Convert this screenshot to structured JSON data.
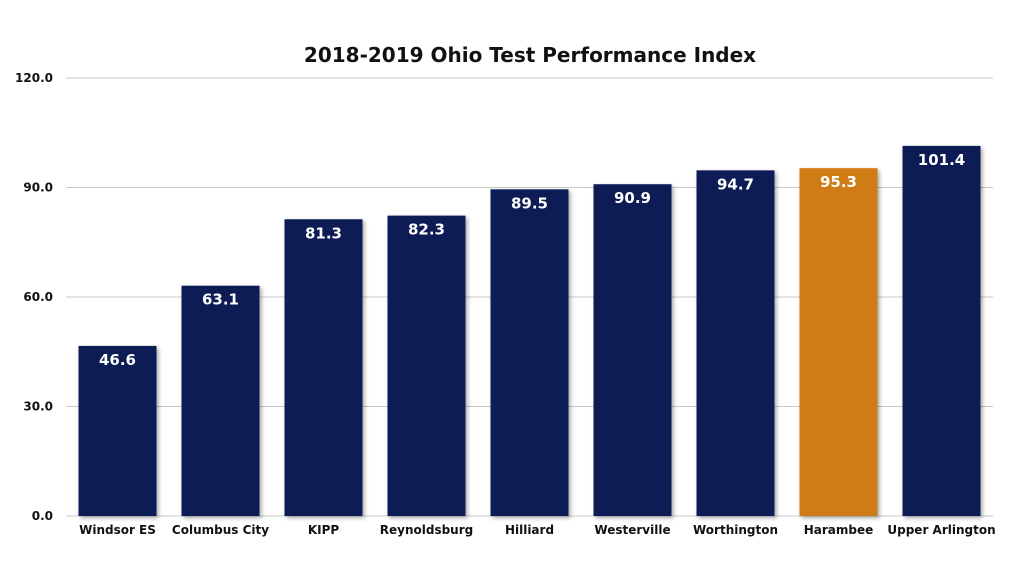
{
  "chart_data": {
    "type": "bar",
    "title": "2018-2019 Ohio Test Performance Index",
    "xlabel": "",
    "ylabel": "",
    "ylim": [
      0,
      120
    ],
    "yticks": [
      0,
      30,
      60,
      90,
      120
    ],
    "ytick_labels": [
      "0.0",
      "30.0",
      "60.0",
      "90.0",
      "120.0"
    ],
    "grid": true,
    "categories": [
      "Windsor ES",
      "Columbus City",
      "KIPP",
      "Reynoldsburg",
      "Hilliard",
      "Westerville",
      "Worthington",
      "Harambee",
      "Upper Arlington"
    ],
    "values": [
      46.6,
      63.1,
      81.3,
      82.3,
      89.5,
      90.9,
      94.7,
      95.3,
      101.4
    ],
    "data_labels": [
      "46.6",
      "63.1",
      "81.3",
      "82.3",
      "89.5",
      "90.9",
      "94.7",
      "95.3",
      "101.4"
    ],
    "colors": {
      "default_bar": "#0c1f55",
      "highlight_bar": "#d07c14",
      "highlight_category": "Harambee"
    }
  }
}
